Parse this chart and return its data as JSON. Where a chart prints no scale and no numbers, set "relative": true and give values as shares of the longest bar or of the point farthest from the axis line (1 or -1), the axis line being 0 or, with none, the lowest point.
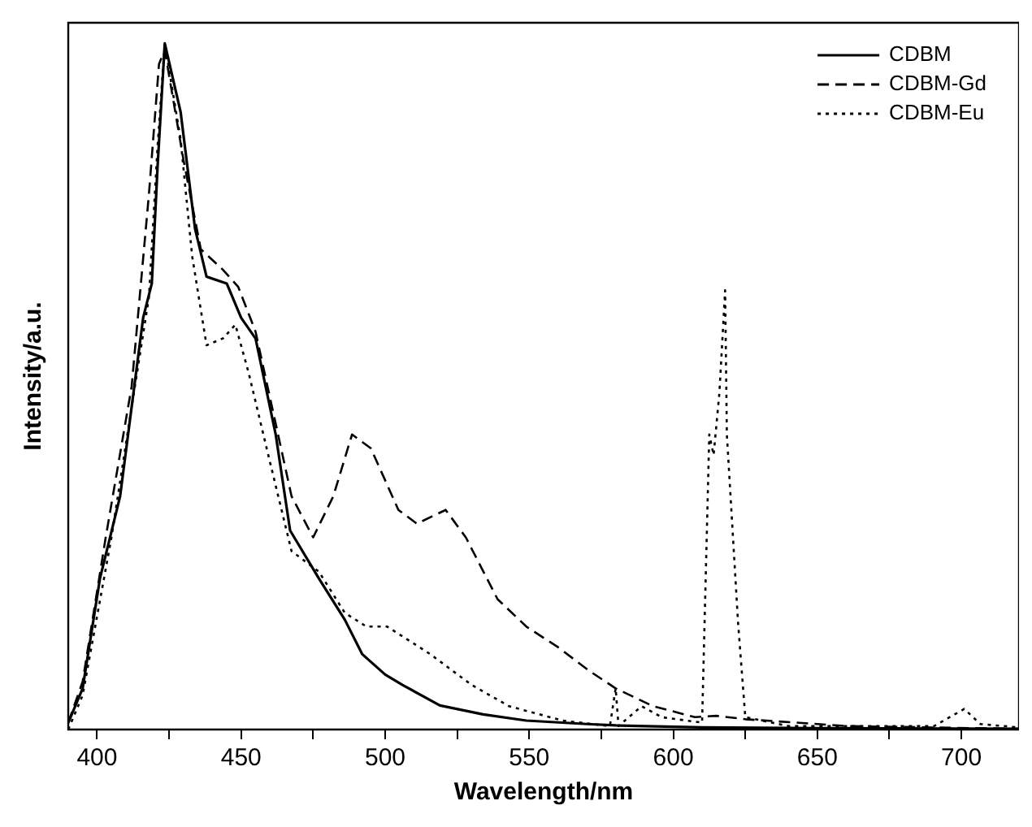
{
  "chart_data": {
    "type": "line",
    "xlabel": "Wavelength/nm",
    "ylabel": "Intensity/a.u.",
    "relative": true,
    "xlim": [
      390,
      720
    ],
    "xticks": [
      400,
      {
        "value": 425,
        "label": null
      },
      450,
      {
        "value": 475,
        "label": null
      },
      500,
      {
        "value": 525,
        "label": null
      },
      550,
      {
        "value": 575,
        "label": null
      },
      600,
      {
        "value": 625,
        "label": null
      },
      650,
      {
        "value": 675,
        "label": null
      },
      700
    ],
    "legend": "top right",
    "grid": false,
    "marker": "none",
    "series": [
      {
        "name": "CDBM",
        "color": "#000000",
        "line_style": "solid",
        "x": [
          390,
          395,
          401,
          408,
          412,
          416,
          419,
          421,
          423.5,
          429,
          434,
          438,
          445,
          450,
          455,
          462,
          467,
          477,
          486,
          492,
          500,
          506,
          519,
          534,
          549,
          570,
          580,
          610,
          650,
          720
        ],
        "values": [
          0.01,
          0.06,
          0.22,
          0.34,
          0.47,
          0.6,
          0.65,
          0.82,
          1.0,
          0.9,
          0.73,
          0.66,
          0.65,
          0.6,
          0.57,
          0.43,
          0.29,
          0.22,
          0.16,
          0.11,
          0.08,
          0.065,
          0.035,
          0.022,
          0.013,
          0.008,
          0.006,
          0.003,
          0.002,
          0.001
        ]
      },
      {
        "name": "CDBM-Gd",
        "color": "#000000",
        "line_style": "dashed",
        "x": [
          390,
          395,
          403,
          412,
          418,
          421.5,
          423.5,
          430,
          436,
          443.7,
          449,
          455,
          467.5,
          475,
          482,
          488.5,
          495,
          504.6,
          511,
          521,
          528,
          539,
          549,
          560,
          571,
          580,
          593,
          607.5,
          615,
          625,
          650,
          660,
          720
        ],
        "values": [
          0.01,
          0.07,
          0.28,
          0.5,
          0.78,
          0.97,
          0.99,
          0.83,
          0.7,
          0.67,
          0.645,
          0.58,
          0.34,
          0.28,
          0.34,
          0.43,
          0.41,
          0.32,
          0.3,
          0.32,
          0.28,
          0.19,
          0.15,
          0.12,
          0.085,
          0.06,
          0.034,
          0.018,
          0.02,
          0.015,
          0.008,
          0.005,
          0.001
        ]
      },
      {
        "name": "CDBM-Eu",
        "color": "#000000",
        "line_style": "dotted",
        "x": [
          390,
          395,
          405,
          412,
          418,
          421,
          423.5,
          429,
          433,
          438,
          443.7,
          448,
          452.6,
          460,
          467.5,
          477,
          486,
          493.5,
          500.7,
          515.6,
          530,
          543,
          561.6,
          578,
          580,
          581,
          589,
          596,
          610,
          612.5,
          614,
          616,
          618,
          618.6,
          622.5,
          625,
          640,
          680,
          690.5,
          701,
          706.6,
          720
        ],
        "values": [
          0,
          0.05,
          0.28,
          0.47,
          0.63,
          0.85,
          1.0,
          0.86,
          0.69,
          0.56,
          0.57,
          0.59,
          0.52,
          0.39,
          0.26,
          0.23,
          0.17,
          0.15,
          0.15,
          0.11,
          0.065,
          0.034,
          0.013,
          0.005,
          0.06,
          0.005,
          0.034,
          0.018,
          0.01,
          0.43,
          0.4,
          0.49,
          0.64,
          0.43,
          0.155,
          0.018,
          0.005,
          0.005,
          0.005,
          0.03,
          0.008,
          0.003
        ]
      }
    ]
  }
}
